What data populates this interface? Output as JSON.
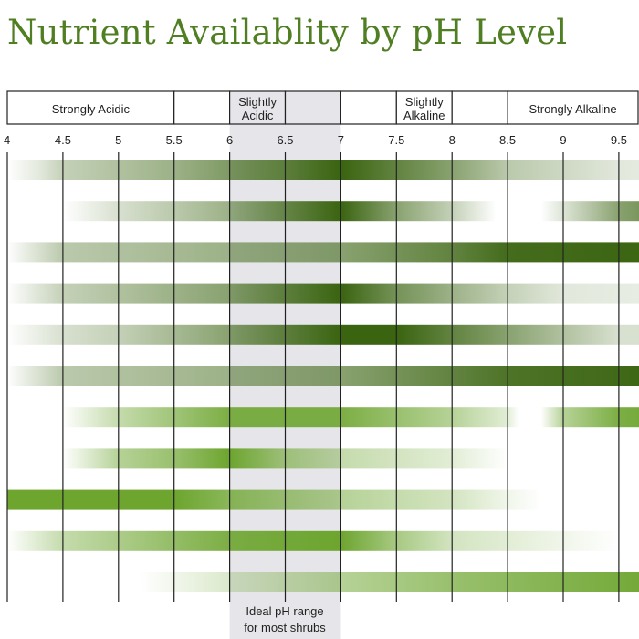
{
  "title": "Nutrient Availablity by pH Level",
  "chart_data": {
    "type": "heatmap",
    "title": "Nutrient Availablity by pH Level",
    "xlim": [
      4,
      10
    ],
    "x_ticks": [
      "4",
      "4.5",
      "5",
      "5.5",
      "6",
      "6.5",
      "7",
      "7.5",
      "8",
      "8.5",
      "9",
      "9.5"
    ],
    "grid": true,
    "ranges": [
      {
        "label": "Strongly Acidic",
        "from": 4,
        "to": 5.5
      },
      {
        "label": "",
        "from": 5.5,
        "to": 6
      },
      {
        "label": "Slightly Acidic",
        "from": 6,
        "to": 6.5,
        "shaded": true
      },
      {
        "label": "",
        "from": 6.5,
        "to": 7,
        "shaded": true
      },
      {
        "label": "",
        "from": 7,
        "to": 7.5
      },
      {
        "label": "Slightly Alkaline",
        "from": 7.5,
        "to": 8
      },
      {
        "label": "",
        "from": 8,
        "to": 8.5
      },
      {
        "label": "Strongly Alkaline",
        "from": 8.5,
        "to": 10
      }
    ],
    "ideal_range": {
      "from": 6,
      "to": 7,
      "label": "Ideal pH range for most shrubs"
    },
    "colors": {
      "dark": "#3a6410",
      "bright": "#6da52f",
      "shade": "#e6e6ea",
      "title": "#4f7f22"
    },
    "rows": [
      {
        "color": "dark",
        "availability": [
          [
            4,
            0
          ],
          [
            4.3,
            0.15
          ],
          [
            4.5,
            0.3
          ],
          [
            5.5,
            0.5
          ],
          [
            6.5,
            0.8
          ],
          [
            7,
            1
          ],
          [
            8,
            0.6
          ],
          [
            8.5,
            0.35
          ],
          [
            9.5,
            0.15
          ],
          [
            10,
            0.1
          ]
        ]
      },
      {
        "color": "dark",
        "availability": [
          [
            4.5,
            0
          ],
          [
            5,
            0.2
          ],
          [
            6,
            0.5
          ],
          [
            7,
            1
          ],
          [
            7.5,
            0.6
          ],
          [
            8,
            0.3
          ],
          [
            8.4,
            0
          ],
          [
            8.8,
            0
          ],
          [
            9.5,
            0.6
          ],
          [
            10,
            0.8
          ]
        ]
      },
      {
        "color": "dark",
        "availability": [
          [
            4,
            0
          ],
          [
            4.5,
            0.35
          ],
          [
            6,
            0.5
          ],
          [
            7,
            0.6
          ],
          [
            8,
            0.8
          ],
          [
            8.5,
            0.95
          ],
          [
            10,
            1
          ]
        ]
      },
      {
        "color": "dark",
        "availability": [
          [
            4,
            0
          ],
          [
            4.5,
            0.3
          ],
          [
            6,
            0.6
          ],
          [
            7,
            1
          ],
          [
            7.5,
            0.7
          ],
          [
            8.5,
            0.3
          ],
          [
            9,
            0.15
          ],
          [
            10,
            0.1
          ]
        ]
      },
      {
        "color": "dark",
        "availability": [
          [
            4,
            0
          ],
          [
            4.5,
            0.2
          ],
          [
            5,
            0.3
          ],
          [
            6,
            0.6
          ],
          [
            7,
            1
          ],
          [
            7.5,
            1
          ],
          [
            8,
            0.8
          ],
          [
            9,
            0.4
          ],
          [
            9.5,
            0.2
          ],
          [
            10,
            0.2
          ]
        ]
      },
      {
        "color": "dark",
        "availability": [
          [
            4,
            0
          ],
          [
            4.5,
            0.35
          ],
          [
            7,
            0.6
          ],
          [
            8.5,
            0.9
          ],
          [
            10,
            1
          ]
        ]
      },
      {
        "color": "bright",
        "availability": [
          [
            4.5,
            0
          ],
          [
            5,
            0.4
          ],
          [
            6,
            0.9
          ],
          [
            7,
            0.9
          ],
          [
            8,
            0.5
          ],
          [
            8.5,
            0.2
          ],
          [
            8.6,
            0
          ],
          [
            8.8,
            0
          ],
          [
            9,
            0.5
          ],
          [
            9.5,
            0.9
          ],
          [
            10,
            1
          ]
        ]
      },
      {
        "color": "bright",
        "availability": [
          [
            4.5,
            0
          ],
          [
            5,
            0.5
          ],
          [
            5.5,
            0.7
          ],
          [
            6,
            1
          ],
          [
            6.5,
            0.6
          ],
          [
            7,
            0.4
          ],
          [
            8,
            0.2
          ],
          [
            8.5,
            0
          ],
          [
            10,
            0
          ]
        ]
      },
      {
        "color": "bright",
        "availability": [
          [
            4,
            1
          ],
          [
            5.5,
            1
          ],
          [
            6,
            0.8
          ],
          [
            7,
            0.5
          ],
          [
            8,
            0.3
          ],
          [
            8.5,
            0.1
          ],
          [
            8.8,
            0
          ],
          [
            10,
            0
          ]
        ]
      },
      {
        "color": "bright",
        "availability": [
          [
            4,
            0
          ],
          [
            4.5,
            0.4
          ],
          [
            6,
            0.9
          ],
          [
            7,
            1
          ],
          [
            7.5,
            0.6
          ],
          [
            8,
            0.3
          ],
          [
            9,
            0.1
          ],
          [
            9.5,
            0
          ],
          [
            10,
            0
          ]
        ]
      },
      {
        "color": "bright",
        "availability": [
          [
            5.2,
            0
          ],
          [
            6,
            0.25
          ],
          [
            7,
            0.5
          ],
          [
            8,
            0.7
          ],
          [
            9,
            0.85
          ],
          [
            10,
            1
          ]
        ]
      }
    ]
  },
  "ideal_label_line1": "Ideal pH range",
  "ideal_label_line2": "for most shrubs"
}
